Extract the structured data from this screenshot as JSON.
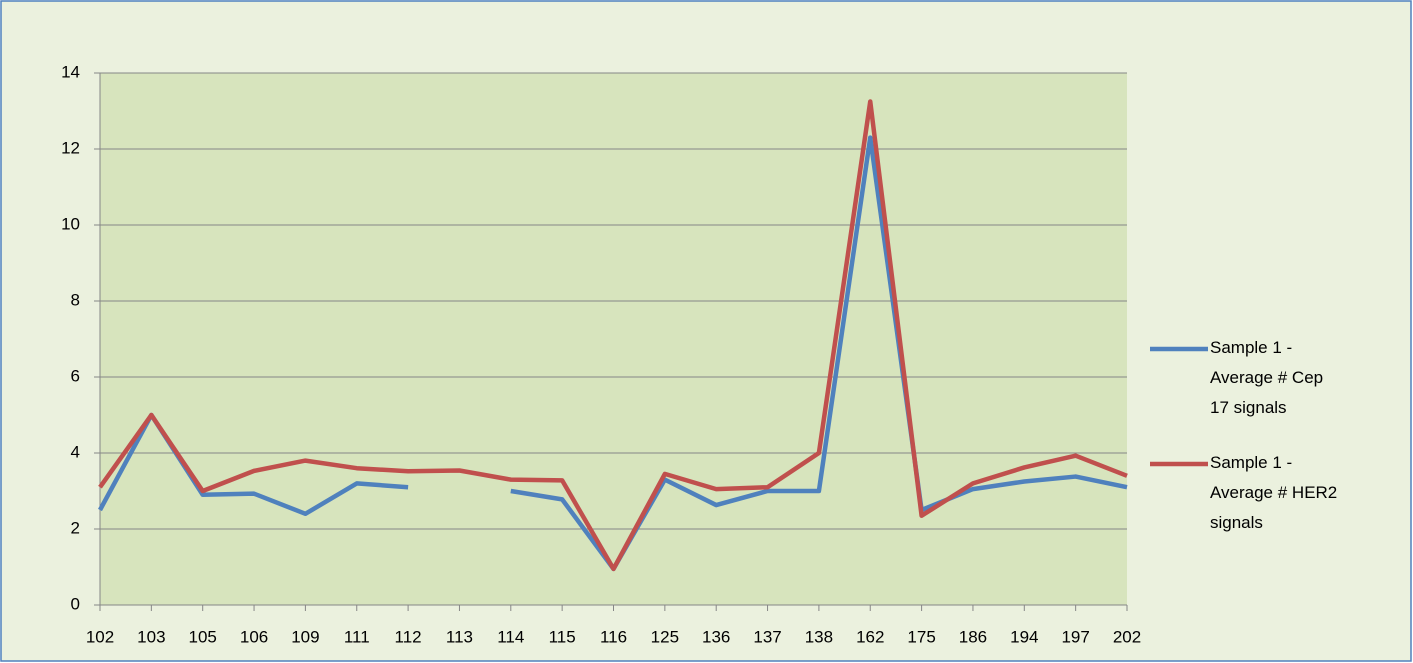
{
  "chart_data": {
    "type": "line",
    "categories": [
      "102",
      "103",
      "105",
      "106",
      "109",
      "111",
      "112",
      "113",
      "114",
      "115",
      "116",
      "125",
      "136",
      "137",
      "138",
      "162",
      "175",
      "186",
      "194",
      "197",
      "202"
    ],
    "series": [
      {
        "name": "Sample 1 - Average # Cep 17 signals",
        "color": "#4f81bd",
        "values": [
          2.5,
          5.0,
          2.9,
          2.93,
          2.4,
          3.2,
          3.1,
          null,
          3.0,
          2.78,
          0.95,
          3.3,
          2.63,
          3.0,
          3.0,
          12.3,
          2.5,
          3.05,
          3.25,
          3.38,
          3.1
        ]
      },
      {
        "name": "Sample 1 - Average # HER2 signals",
        "color": "#c0504d",
        "values": [
          3.1,
          5.0,
          3.0,
          3.53,
          3.8,
          3.6,
          3.52,
          3.54,
          3.3,
          3.28,
          0.95,
          3.45,
          3.05,
          3.1,
          4.0,
          13.25,
          2.35,
          3.2,
          3.62,
          3.93,
          3.4
        ]
      }
    ],
    "ylim": [
      0,
      14
    ],
    "yticks": [
      0,
      2,
      4,
      6,
      8,
      10,
      12,
      14
    ],
    "grid": true,
    "legend": "right"
  }
}
